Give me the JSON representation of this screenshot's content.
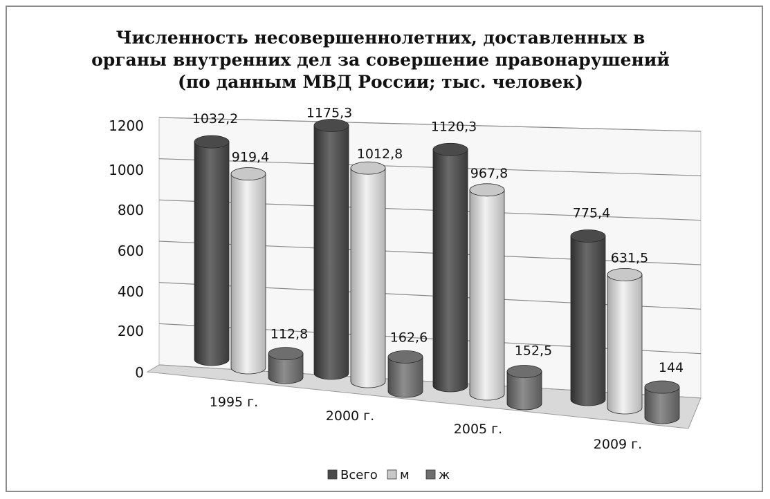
{
  "chart_data": {
    "type": "bar",
    "style": "3d-cylinder",
    "title_lines": [
      "Численность несовершеннолетних, доставленных в",
      "органы внутренних дел за совершение правонарушений",
      "(по данным МВД России; тыс. человек)"
    ],
    "categories": [
      "1995 г.",
      "2000 г.",
      "2005 г.",
      "2009 г."
    ],
    "series": [
      {
        "name": "Всего",
        "values": [
          1032.2,
          1175.3,
          1120.3,
          775.4
        ],
        "labels": [
          "1032,2",
          "1175,3",
          "1120,3",
          "775,4"
        ],
        "color": "#4a4a4a"
      },
      {
        "name": "м",
        "values": [
          919.4,
          1012.8,
          967.8,
          631.5
        ],
        "labels": [
          "919,4",
          "1012,8",
          "967,8",
          "631,5"
        ],
        "color": "#c8c8c8"
      },
      {
        "name": "ж",
        "values": [
          112.8,
          162.6,
          152.5,
          144
        ],
        "labels": [
          "112,8",
          "162,6",
          "152,5",
          "144"
        ],
        "color": "#6e6e6e"
      }
    ],
    "yticks": [
      "0",
      "200",
      "400",
      "600",
      "800",
      "1000",
      "1200"
    ],
    "ylim": [
      0,
      1200
    ],
    "grid": true,
    "legend_position": "bottom"
  }
}
